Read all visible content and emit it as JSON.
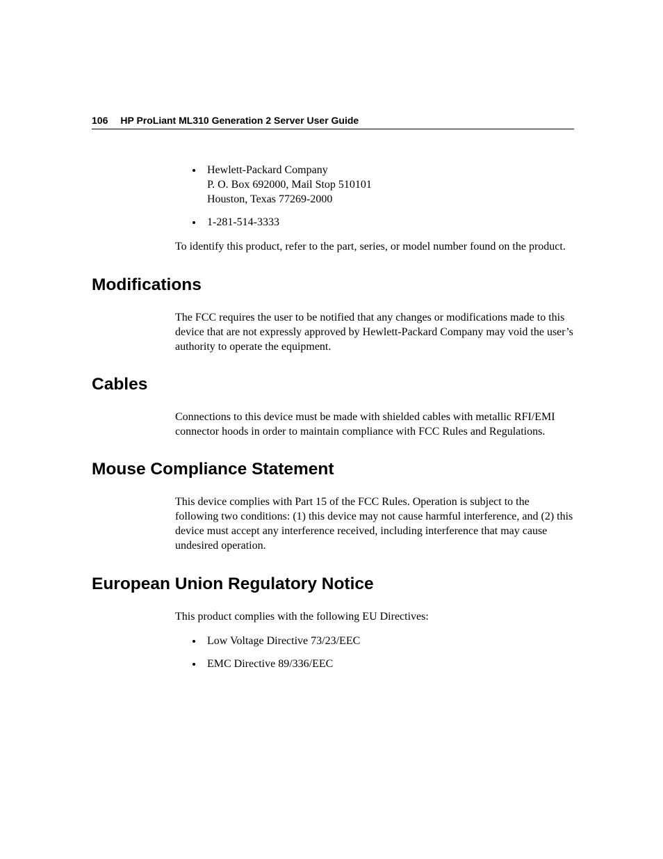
{
  "header": {
    "page_number": "106",
    "doc_title": "HP ProLiant ML310 Generation 2 Server User Guide"
  },
  "intro": {
    "bullets": [
      {
        "lines": [
          "Hewlett-Packard Company",
          "P. O. Box 692000, Mail Stop 510101",
          "Houston, Texas 77269-2000"
        ]
      },
      {
        "lines": [
          "1-281-514-3333"
        ]
      }
    ],
    "para": "To identify this product, refer to the part, series, or model number found on the product."
  },
  "sections": {
    "modifications": {
      "heading": "Modifications",
      "para": "The FCC requires the user to be notified that any changes or modifications made to this device that are not expressly approved by Hewlett-Packard Company may void the user’s authority to operate the equipment."
    },
    "cables": {
      "heading": "Cables",
      "para": "Connections to this device must be made with shielded cables with metallic RFI/EMI connector hoods in order to maintain compliance with FCC Rules and Regulations."
    },
    "mouse": {
      "heading": "Mouse Compliance Statement",
      "para": "This device complies with Part 15 of the FCC Rules. Operation is subject to the following two conditions: (1) this device may not cause harmful interference, and (2) this device must accept any interference received, including interference that may cause undesired operation."
    },
    "eu": {
      "heading": "European Union Regulatory Notice",
      "para": "This product complies with the following EU Directives:",
      "bullets": [
        "Low Voltage Directive 73/23/EEC",
        "EMC Directive 89/336/EEC"
      ]
    }
  },
  "style": {
    "page_bg": "#ffffff",
    "text_color": "#000000",
    "heading_font": "Arial",
    "body_font": "Times New Roman",
    "heading_fontsize_pt": 18,
    "body_fontsize_pt": 12,
    "header_fontsize_pt": 10.5,
    "header_rule_color": "#000000"
  }
}
